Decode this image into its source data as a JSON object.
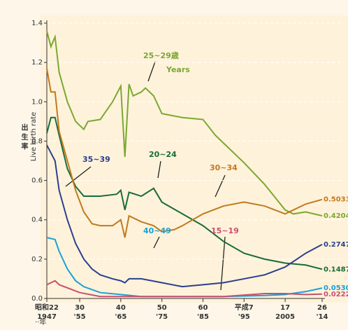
{
  "chart_data": {
    "type": "line",
    "y_label_ja": "出 生 率",
    "y_label": "Live birth rate",
    "annotation_years": "Years",
    "xaxis_unit": "··年",
    "xlim": [
      1947,
      2014
    ],
    "ylim": [
      0,
      1.4
    ],
    "yticks": [
      {
        "value": 0,
        "label": "0.0"
      },
      {
        "value": 0.2,
        "label": "0.2"
      },
      {
        "value": 0.4,
        "label": "0.4"
      },
      {
        "value": 0.6,
        "label": "0.6"
      },
      {
        "value": 0.8,
        "label": "0.8"
      },
      {
        "value": 1.0,
        "label": "1.0"
      },
      {
        "value": 1.2,
        "label": "1.2"
      },
      {
        "value": 1.4,
        "label": "1.4"
      }
    ],
    "xticks": [
      {
        "value": 1947,
        "label": "昭和22"
      },
      {
        "value": 1955,
        "label": "30"
      },
      {
        "value": 1965,
        "label": "40"
      },
      {
        "value": 1975,
        "label": "50"
      },
      {
        "value": 1985,
        "label": "60"
      },
      {
        "value": 1995,
        "label": "平成7"
      },
      {
        "value": 2005,
        "label": "17"
      },
      {
        "value": 2014,
        "label": "26"
      }
    ],
    "xticks_western_labels": [
      "1947",
      "'55",
      "'65",
      "'75",
      "'85",
      "'95",
      "2005",
      "'14"
    ],
    "grid": true,
    "series": [
      {
        "name": "25~29歳",
        "color": "#7aa832",
        "x": [
          1947,
          1948,
          1949,
          1950,
          1952,
          1954,
          1956,
          1957,
          1960,
          1963,
          1965,
          1966,
          1967,
          1968,
          1970,
          1971,
          1973,
          1975,
          1980,
          1985,
          1988,
          1990,
          1995,
          2000,
          2005,
          2007,
          2010,
          2014
        ],
        "values": [
          1.36,
          1.28,
          1.33,
          1.15,
          1.0,
          0.9,
          0.86,
          0.9,
          0.91,
          1.0,
          1.08,
          0.72,
          1.09,
          1.03,
          1.05,
          1.07,
          1.03,
          0.94,
          0.92,
          0.91,
          0.83,
          0.79,
          0.69,
          0.58,
          0.45,
          0.43,
          0.44,
          0.4204
        ],
        "end_value_label": "0.4204"
      },
      {
        "name": "20~24",
        "color": "#1a6b3a",
        "x": [
          1947,
          1948,
          1949,
          1950,
          1952,
          1954,
          1956,
          1960,
          1964,
          1965,
          1966,
          1967,
          1970,
          1973,
          1975,
          1980,
          1985,
          1990,
          1995,
          2000,
          2005,
          2010,
          2014
        ],
        "values": [
          0.84,
          0.92,
          0.92,
          0.83,
          0.66,
          0.57,
          0.52,
          0.52,
          0.53,
          0.55,
          0.45,
          0.54,
          0.52,
          0.56,
          0.49,
          0.43,
          0.37,
          0.29,
          0.23,
          0.2,
          0.18,
          0.17,
          0.1487
        ],
        "end_value_label": "0.1487"
      },
      {
        "name": "30~34",
        "color": "#c07a1e",
        "x": [
          1947,
          1948,
          1949,
          1950,
          1952,
          1954,
          1956,
          1958,
          1960,
          1963,
          1965,
          1966,
          1967,
          1970,
          1973,
          1975,
          1978,
          1980,
          1985,
          1990,
          1995,
          2000,
          2005,
          2007,
          2010,
          2014
        ],
        "values": [
          1.17,
          1.05,
          1.05,
          0.85,
          0.7,
          0.55,
          0.44,
          0.38,
          0.37,
          0.37,
          0.4,
          0.31,
          0.42,
          0.39,
          0.37,
          0.34,
          0.35,
          0.37,
          0.43,
          0.47,
          0.49,
          0.47,
          0.43,
          0.45,
          0.48,
          0.5033
        ],
        "end_value_label": "0.5033"
      },
      {
        "name": "35~39",
        "color": "#2a3f8f",
        "x": [
          1947,
          1949,
          1950,
          1952,
          1954,
          1956,
          1958,
          1960,
          1963,
          1965,
          1966,
          1967,
          1970,
          1975,
          1980,
          1985,
          1990,
          1995,
          2000,
          2005,
          2010,
          2014
        ],
        "values": [
          0.78,
          0.7,
          0.55,
          0.4,
          0.28,
          0.2,
          0.15,
          0.12,
          0.1,
          0.09,
          0.08,
          0.1,
          0.1,
          0.08,
          0.06,
          0.07,
          0.08,
          0.1,
          0.12,
          0.16,
          0.23,
          0.2747
        ],
        "end_value_label": "0.2747"
      },
      {
        "name": "40~49",
        "color": "#1aa0d8",
        "x": [
          1947,
          1949,
          1950,
          1952,
          1954,
          1956,
          1960,
          1965,
          1970,
          1980,
          1990,
          2000,
          2005,
          2010,
          2014
        ],
        "values": [
          0.31,
          0.3,
          0.24,
          0.15,
          0.09,
          0.06,
          0.03,
          0.02,
          0.01,
          0.01,
          0.01,
          0.015,
          0.02,
          0.035,
          0.053
        ],
        "end_value_label": "0.0530"
      },
      {
        "name": "15~19",
        "color": "#c8506e",
        "x": [
          1947,
          1949,
          1950,
          1955,
          1960,
          1970,
          1980,
          1990,
          2000,
          2005,
          2010,
          2014
        ],
        "values": [
          0.07,
          0.09,
          0.07,
          0.03,
          0.01,
          0.01,
          0.01,
          0.01,
          0.025,
          0.025,
          0.02,
          0.0222
        ],
        "end_value_label": "0.0222"
      }
    ]
  }
}
